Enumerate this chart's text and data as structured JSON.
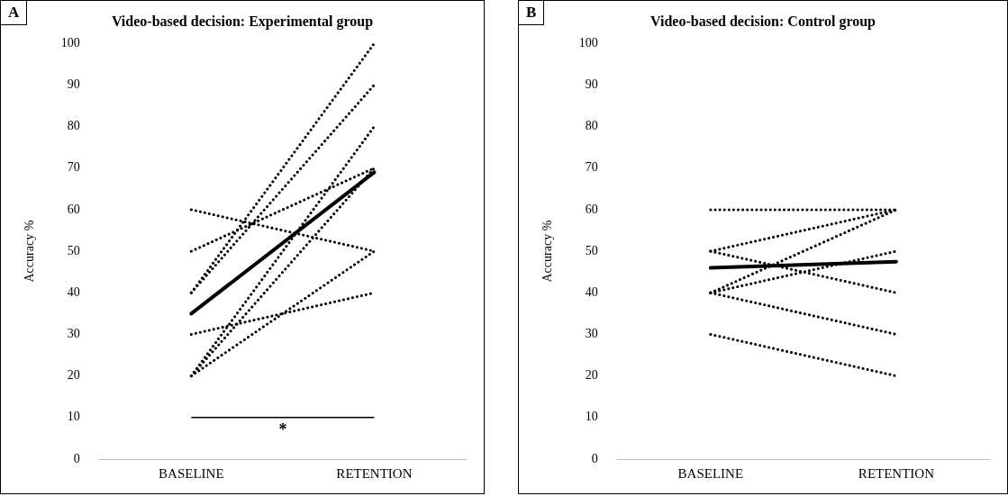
{
  "chart_data": [
    {
      "type": "line",
      "title": "Video-based decision: Experimental group",
      "ylabel": "Accuracy %",
      "categories": [
        "BASELINE",
        "RETENTION"
      ],
      "ylim": [
        0,
        100
      ],
      "yticks": [
        0,
        10,
        20,
        30,
        40,
        50,
        60,
        70,
        80,
        90,
        100
      ],
      "grid": false,
      "legend": false,
      "marker": "none",
      "annotations": [
        "A",
        "*"
      ],
      "series": [
        {
          "color": "#000000",
          "line_style": "dotted",
          "values": [
            60,
            50
          ]
        },
        {
          "color": "#000000",
          "line_style": "dotted",
          "values": [
            50,
            70
          ]
        },
        {
          "color": "#000000",
          "line_style": "dotted",
          "values": [
            40,
            100
          ]
        },
        {
          "color": "#000000",
          "line_style": "dotted",
          "values": [
            40,
            90
          ]
        },
        {
          "color": "#000000",
          "line_style": "dotted",
          "values": [
            30,
            40
          ]
        },
        {
          "color": "#000000",
          "line_style": "dotted",
          "values": [
            20,
            80
          ]
        },
        {
          "color": "#000000",
          "line_style": "dotted",
          "values": [
            20,
            70
          ]
        },
        {
          "color": "#000000",
          "line_style": "dotted",
          "values": [
            20,
            50
          ]
        },
        {
          "color": "#000000",
          "line_style": "solid",
          "values": [
            35,
            69
          ]
        }
      ]
    },
    {
      "type": "line",
      "title": "Video-based decision: Control group",
      "ylabel": "Accuracy %",
      "categories": [
        "BASELINE",
        "RETENTION"
      ],
      "ylim": [
        0,
        100
      ],
      "yticks": [
        0,
        10,
        20,
        30,
        40,
        50,
        60,
        70,
        80,
        90,
        100
      ],
      "grid": false,
      "legend": false,
      "marker": "none",
      "annotations": [
        "B"
      ],
      "series": [
        {
          "color": "#000000",
          "line_style": "dotted",
          "values": [
            60,
            60
          ]
        },
        {
          "color": "#000000",
          "line_style": "dotted",
          "values": [
            50,
            60
          ]
        },
        {
          "color": "#000000",
          "line_style": "dotted",
          "values": [
            50,
            40
          ]
        },
        {
          "color": "#000000",
          "line_style": "dotted",
          "values": [
            40,
            60
          ]
        },
        {
          "color": "#000000",
          "line_style": "dotted",
          "values": [
            40,
            50
          ]
        },
        {
          "color": "#000000",
          "line_style": "dotted",
          "values": [
            40,
            30
          ]
        },
        {
          "color": "#000000",
          "line_style": "dotted",
          "values": [
            30,
            20
          ]
        },
        {
          "color": "#000000",
          "line_style": "solid",
          "values": [
            46,
            47.5
          ]
        }
      ]
    }
  ]
}
